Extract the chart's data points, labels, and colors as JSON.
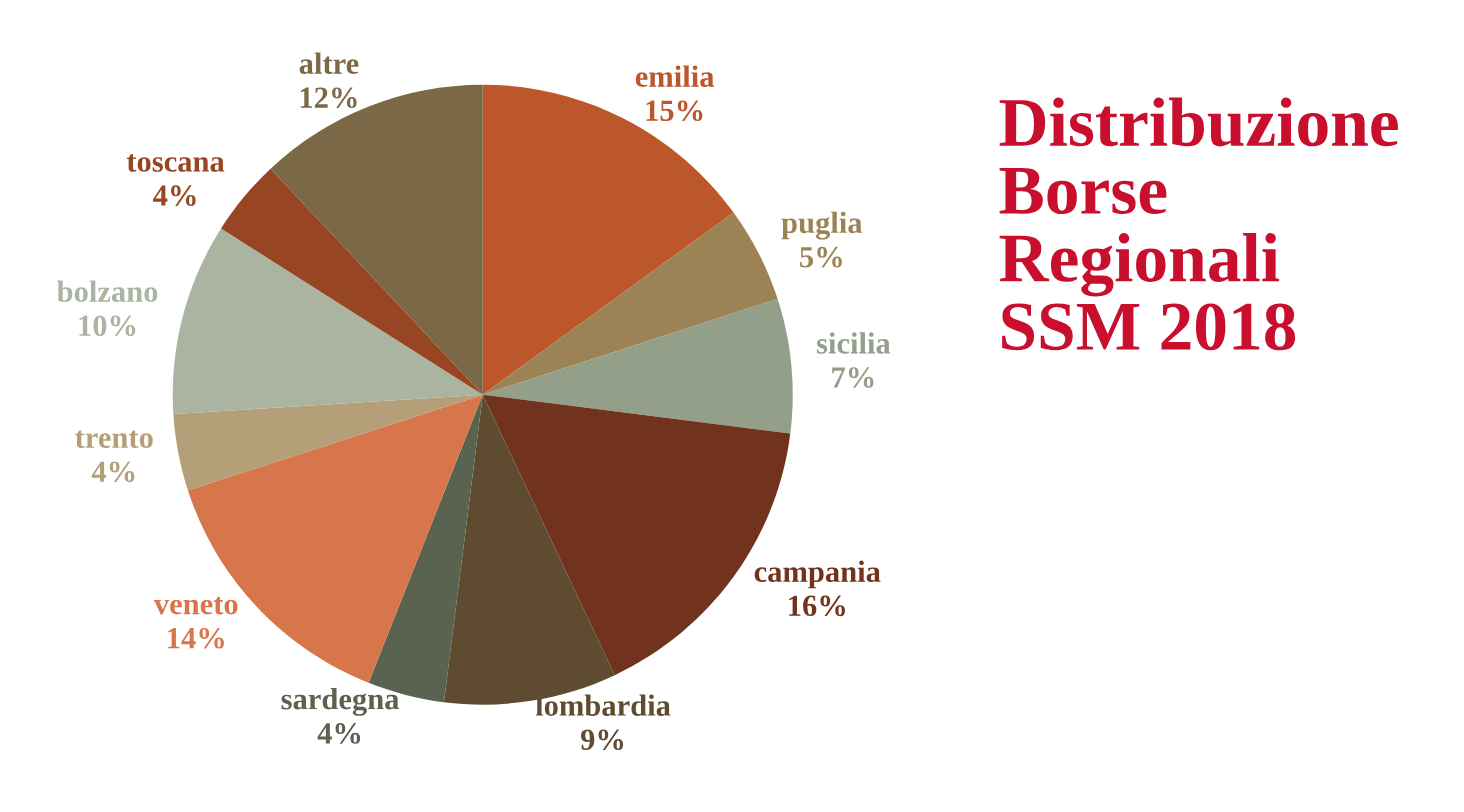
{
  "chart_data": {
    "type": "pie",
    "title": "Distribuzione\nBorse\nRegionali\nSSM 2018",
    "categories": [
      "emilia",
      "puglia",
      "sicilia",
      "campania",
      "lombardia",
      "sardegna",
      "veneto",
      "trento",
      "bolzano",
      "toscana",
      "altre"
    ],
    "values": [
      15,
      5,
      7,
      16,
      9,
      4,
      14,
      4,
      10,
      4,
      12
    ],
    "value_labels": [
      "15%",
      "5%",
      "7%",
      "16%",
      "9%",
      "4%",
      "14%",
      "4%",
      "10%",
      "4%",
      "12%"
    ],
    "colors": [
      "#bc562b",
      "#9c8356",
      "#939f88",
      "#71331d",
      "#5e4b30",
      "#596350",
      "#d7764a",
      "#b59f78",
      "#abb4a1",
      "#984524",
      "#7b6846"
    ],
    "legend": false
  }
}
